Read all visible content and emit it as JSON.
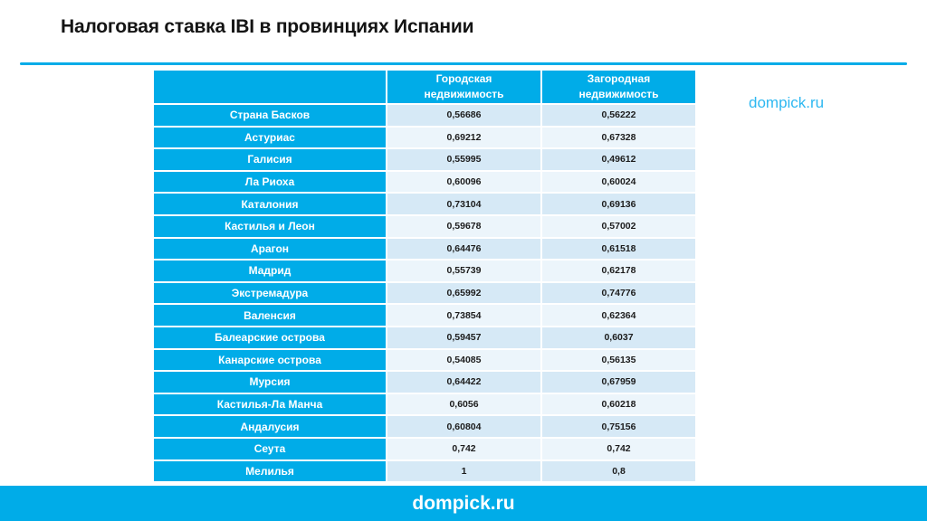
{
  "slide": {
    "title": "Налоговая ставка IBI в провинциях Испании",
    "side_link": "dompick.ru",
    "footer_link": "dompick.ru"
  },
  "colors": {
    "accent_cyan": "#00ACE8",
    "row_shade_dark": "#D6E9F6",
    "row_shade_light": "#ECF5FB",
    "side_link_cyan": "#2EB8F1",
    "title_text": "#141414"
  },
  "table": {
    "header": {
      "region_col": "",
      "urban": "Городская недвижимость",
      "rural": "Загородная недвижимость"
    },
    "rows": [
      {
        "name": "Страна Басков",
        "urban": "0,56686",
        "rural": "0,56222"
      },
      {
        "name": "Астуриас",
        "urban": "0,69212",
        "rural": "0,67328"
      },
      {
        "name": "Галисия",
        "urban": "0,55995",
        "rural": "0,49612"
      },
      {
        "name": "Ла Риоха",
        "urban": "0,60096",
        "rural": "0,60024"
      },
      {
        "name": "Каталония",
        "urban": "0,73104",
        "rural": "0,69136"
      },
      {
        "name": "Кастилья и Леон",
        "urban": "0,59678",
        "rural": "0,57002"
      },
      {
        "name": "Арагон",
        "urban": "0,64476",
        "rural": "0,61518"
      },
      {
        "name": "Мадрид",
        "urban": "0,55739",
        "rural": "0,62178"
      },
      {
        "name": "Экстремадура",
        "urban": "0,65992",
        "rural": "0,74776"
      },
      {
        "name": "Валенсия",
        "urban": "0,73854",
        "rural": "0,62364"
      },
      {
        "name": "Балеарские острова",
        "urban": "0,59457",
        "rural": "0,6037"
      },
      {
        "name": "Канарские острова",
        "urban": "0,54085",
        "rural": "0,56135"
      },
      {
        "name": "Мурсия",
        "urban": "0,64422",
        "rural": "0,67959"
      },
      {
        "name": "Кастилья-Ла Манча",
        "urban": "0,6056",
        "rural": "0,60218"
      },
      {
        "name": "Андалусия",
        "urban": "0,60804",
        "rural": "0,75156"
      },
      {
        "name": "Сеута",
        "urban": "0,742",
        "rural": "0,742"
      },
      {
        "name": "Мелилья",
        "urban": "1",
        "rural": "0,8"
      }
    ]
  }
}
